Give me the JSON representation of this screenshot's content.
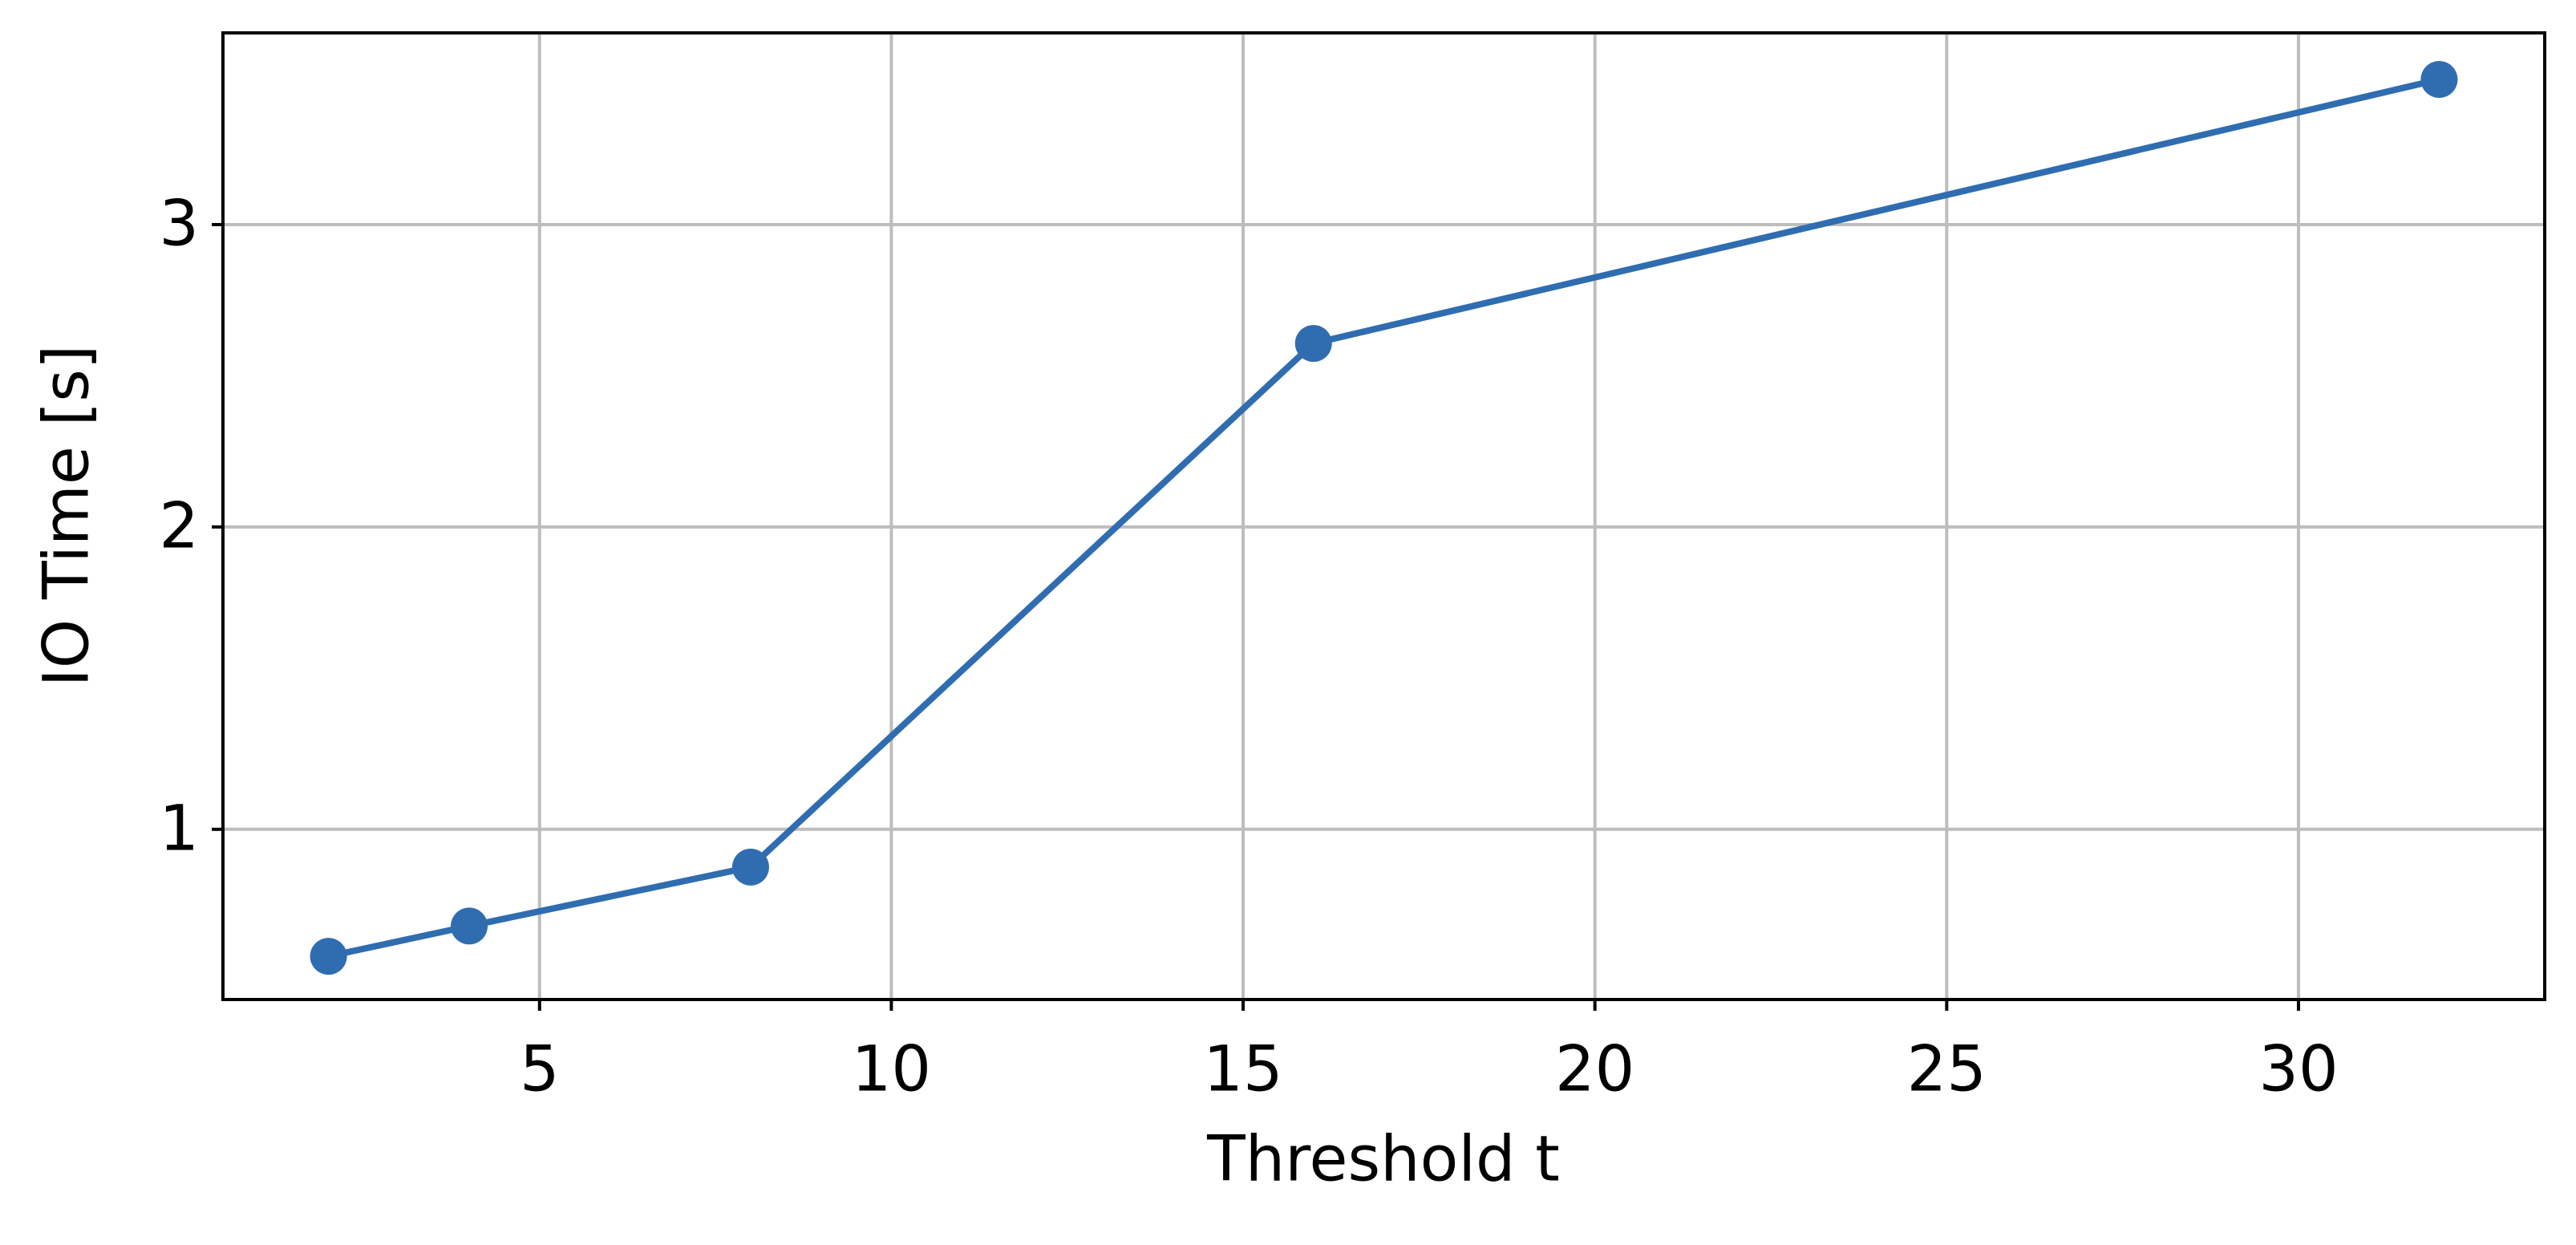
{
  "chart_data": {
    "type": "line",
    "xlabel": "Threshold t",
    "ylabel": "IO Time [s]",
    "x": [
      2,
      4,
      8,
      16,
      32
    ],
    "series": [
      {
        "color": "#2f6db0",
        "values": [
          0.58,
          0.68,
          0.875,
          2.607,
          3.48
        ]
      }
    ],
    "xlim": [
      0.5,
      33.5
    ],
    "ylim": [
      0.437,
      3.634
    ],
    "xticks": [
      5,
      10,
      15,
      20,
      25,
      30
    ],
    "yticks": [
      1,
      2,
      3
    ],
    "grid": true,
    "markers": true
  }
}
